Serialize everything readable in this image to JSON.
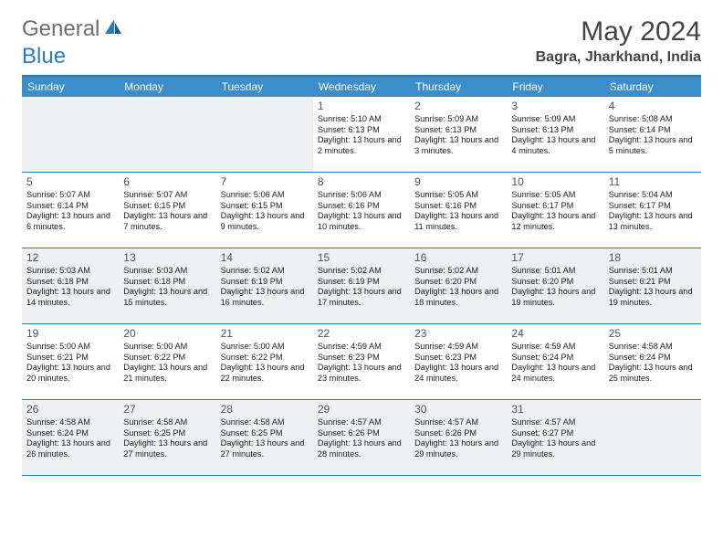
{
  "logo": {
    "general": "General",
    "blue": "Blue"
  },
  "title": "May 2024",
  "location": "Bagra, Jharkhand, India",
  "day_headers": [
    "Sunday",
    "Monday",
    "Tuesday",
    "Wednesday",
    "Thursday",
    "Friday",
    "Saturday"
  ],
  "colors": {
    "header_bg": "#3c8dcc",
    "border": "#2a7ac0",
    "shaded": "#eef0f2"
  },
  "weeks": [
    [
      {
        "num": "",
        "sunrise": "",
        "sunset": "",
        "daylight": "",
        "shaded": true
      },
      {
        "num": "",
        "sunrise": "",
        "sunset": "",
        "daylight": "",
        "shaded": true
      },
      {
        "num": "",
        "sunrise": "",
        "sunset": "",
        "daylight": "",
        "shaded": true
      },
      {
        "num": "1",
        "sunrise": "Sunrise: 5:10 AM",
        "sunset": "Sunset: 6:13 PM",
        "daylight": "Daylight: 13 hours and 2 minutes.",
        "shaded": false
      },
      {
        "num": "2",
        "sunrise": "Sunrise: 5:09 AM",
        "sunset": "Sunset: 6:13 PM",
        "daylight": "Daylight: 13 hours and 3 minutes.",
        "shaded": false
      },
      {
        "num": "3",
        "sunrise": "Sunrise: 5:09 AM",
        "sunset": "Sunset: 6:13 PM",
        "daylight": "Daylight: 13 hours and 4 minutes.",
        "shaded": false
      },
      {
        "num": "4",
        "sunrise": "Sunrise: 5:08 AM",
        "sunset": "Sunset: 6:14 PM",
        "daylight": "Daylight: 13 hours and 5 minutes.",
        "shaded": false
      }
    ],
    [
      {
        "num": "5",
        "sunrise": "Sunrise: 5:07 AM",
        "sunset": "Sunset: 6:14 PM",
        "daylight": "Daylight: 13 hours and 6 minutes.",
        "shaded": false
      },
      {
        "num": "6",
        "sunrise": "Sunrise: 5:07 AM",
        "sunset": "Sunset: 6:15 PM",
        "daylight": "Daylight: 13 hours and 7 minutes.",
        "shaded": false
      },
      {
        "num": "7",
        "sunrise": "Sunrise: 5:06 AM",
        "sunset": "Sunset: 6:15 PM",
        "daylight": "Daylight: 13 hours and 9 minutes.",
        "shaded": false
      },
      {
        "num": "8",
        "sunrise": "Sunrise: 5:06 AM",
        "sunset": "Sunset: 6:16 PM",
        "daylight": "Daylight: 13 hours and 10 minutes.",
        "shaded": false
      },
      {
        "num": "9",
        "sunrise": "Sunrise: 5:05 AM",
        "sunset": "Sunset: 6:16 PM",
        "daylight": "Daylight: 13 hours and 11 minutes.",
        "shaded": false
      },
      {
        "num": "10",
        "sunrise": "Sunrise: 5:05 AM",
        "sunset": "Sunset: 6:17 PM",
        "daylight": "Daylight: 13 hours and 12 minutes.",
        "shaded": false
      },
      {
        "num": "11",
        "sunrise": "Sunrise: 5:04 AM",
        "sunset": "Sunset: 6:17 PM",
        "daylight": "Daylight: 13 hours and 13 minutes.",
        "shaded": false
      }
    ],
    [
      {
        "num": "12",
        "sunrise": "Sunrise: 5:03 AM",
        "sunset": "Sunset: 6:18 PM",
        "daylight": "Daylight: 13 hours and 14 minutes.",
        "shaded": true
      },
      {
        "num": "13",
        "sunrise": "Sunrise: 5:03 AM",
        "sunset": "Sunset: 6:18 PM",
        "daylight": "Daylight: 13 hours and 15 minutes.",
        "shaded": true
      },
      {
        "num": "14",
        "sunrise": "Sunrise: 5:02 AM",
        "sunset": "Sunset: 6:19 PM",
        "daylight": "Daylight: 13 hours and 16 minutes.",
        "shaded": true
      },
      {
        "num": "15",
        "sunrise": "Sunrise: 5:02 AM",
        "sunset": "Sunset: 6:19 PM",
        "daylight": "Daylight: 13 hours and 17 minutes.",
        "shaded": true
      },
      {
        "num": "16",
        "sunrise": "Sunrise: 5:02 AM",
        "sunset": "Sunset: 6:20 PM",
        "daylight": "Daylight: 13 hours and 18 minutes.",
        "shaded": true
      },
      {
        "num": "17",
        "sunrise": "Sunrise: 5:01 AM",
        "sunset": "Sunset: 6:20 PM",
        "daylight": "Daylight: 13 hours and 19 minutes.",
        "shaded": true
      },
      {
        "num": "18",
        "sunrise": "Sunrise: 5:01 AM",
        "sunset": "Sunset: 6:21 PM",
        "daylight": "Daylight: 13 hours and 19 minutes.",
        "shaded": true
      }
    ],
    [
      {
        "num": "19",
        "sunrise": "Sunrise: 5:00 AM",
        "sunset": "Sunset: 6:21 PM",
        "daylight": "Daylight: 13 hours and 20 minutes.",
        "shaded": false
      },
      {
        "num": "20",
        "sunrise": "Sunrise: 5:00 AM",
        "sunset": "Sunset: 6:22 PM",
        "daylight": "Daylight: 13 hours and 21 minutes.",
        "shaded": false
      },
      {
        "num": "21",
        "sunrise": "Sunrise: 5:00 AM",
        "sunset": "Sunset: 6:22 PM",
        "daylight": "Daylight: 13 hours and 22 minutes.",
        "shaded": false
      },
      {
        "num": "22",
        "sunrise": "Sunrise: 4:59 AM",
        "sunset": "Sunset: 6:23 PM",
        "daylight": "Daylight: 13 hours and 23 minutes.",
        "shaded": false
      },
      {
        "num": "23",
        "sunrise": "Sunrise: 4:59 AM",
        "sunset": "Sunset: 6:23 PM",
        "daylight": "Daylight: 13 hours and 24 minutes.",
        "shaded": false
      },
      {
        "num": "24",
        "sunrise": "Sunrise: 4:59 AM",
        "sunset": "Sunset: 6:24 PM",
        "daylight": "Daylight: 13 hours and 24 minutes.",
        "shaded": false
      },
      {
        "num": "25",
        "sunrise": "Sunrise: 4:58 AM",
        "sunset": "Sunset: 6:24 PM",
        "daylight": "Daylight: 13 hours and 25 minutes.",
        "shaded": false
      }
    ],
    [
      {
        "num": "26",
        "sunrise": "Sunrise: 4:58 AM",
        "sunset": "Sunset: 6:24 PM",
        "daylight": "Daylight: 13 hours and 26 minutes.",
        "shaded": true
      },
      {
        "num": "27",
        "sunrise": "Sunrise: 4:58 AM",
        "sunset": "Sunset: 6:25 PM",
        "daylight": "Daylight: 13 hours and 27 minutes.",
        "shaded": true
      },
      {
        "num": "28",
        "sunrise": "Sunrise: 4:58 AM",
        "sunset": "Sunset: 6:25 PM",
        "daylight": "Daylight: 13 hours and 27 minutes.",
        "shaded": true
      },
      {
        "num": "29",
        "sunrise": "Sunrise: 4:57 AM",
        "sunset": "Sunset: 6:26 PM",
        "daylight": "Daylight: 13 hours and 28 minutes.",
        "shaded": true
      },
      {
        "num": "30",
        "sunrise": "Sunrise: 4:57 AM",
        "sunset": "Sunset: 6:26 PM",
        "daylight": "Daylight: 13 hours and 29 minutes.",
        "shaded": true
      },
      {
        "num": "31",
        "sunrise": "Sunrise: 4:57 AM",
        "sunset": "Sunset: 6:27 PM",
        "daylight": "Daylight: 13 hours and 29 minutes.",
        "shaded": true
      },
      {
        "num": "",
        "sunrise": "",
        "sunset": "",
        "daylight": "",
        "shaded": true
      }
    ]
  ]
}
